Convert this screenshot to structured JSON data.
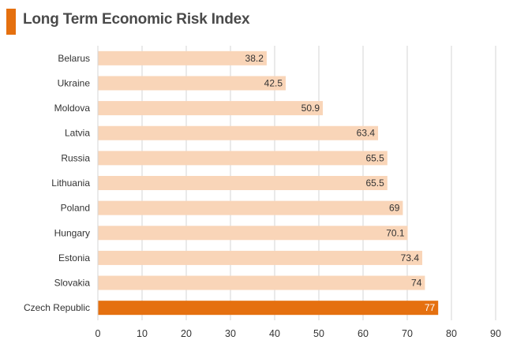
{
  "title": "Long Term Economic Risk Index",
  "colors": {
    "accent": "#e5700f",
    "bar": "#f9d5b8",
    "highlight": "#e5700f",
    "grid": "#d6d6d6"
  },
  "chart_data": {
    "type": "bar",
    "orientation": "horizontal",
    "title": "Long Term Economic Risk Index",
    "xlabel": "",
    "ylabel": "",
    "categories": [
      "Belarus",
      "Ukraine",
      "Moldova",
      "Latvia",
      "Russia",
      "Lithuania",
      "Poland",
      "Hungary",
      "Estonia",
      "Slovakia",
      "Czech Republic"
    ],
    "values": [
      38.2,
      42.5,
      50.9,
      63.4,
      65.5,
      65.5,
      69,
      70.1,
      73.4,
      74,
      77
    ],
    "value_labels": [
      "38.2",
      "42.5",
      "50.9",
      "63.4",
      "65.5",
      "65.5",
      "69",
      "70.1",
      "73.4",
      "74",
      "77"
    ],
    "highlighted": "Czech Republic",
    "xlim": [
      0,
      90
    ],
    "xticks": [
      0,
      10,
      20,
      30,
      40,
      50,
      60,
      70,
      80,
      90
    ],
    "grid": true,
    "legend": "none"
  }
}
